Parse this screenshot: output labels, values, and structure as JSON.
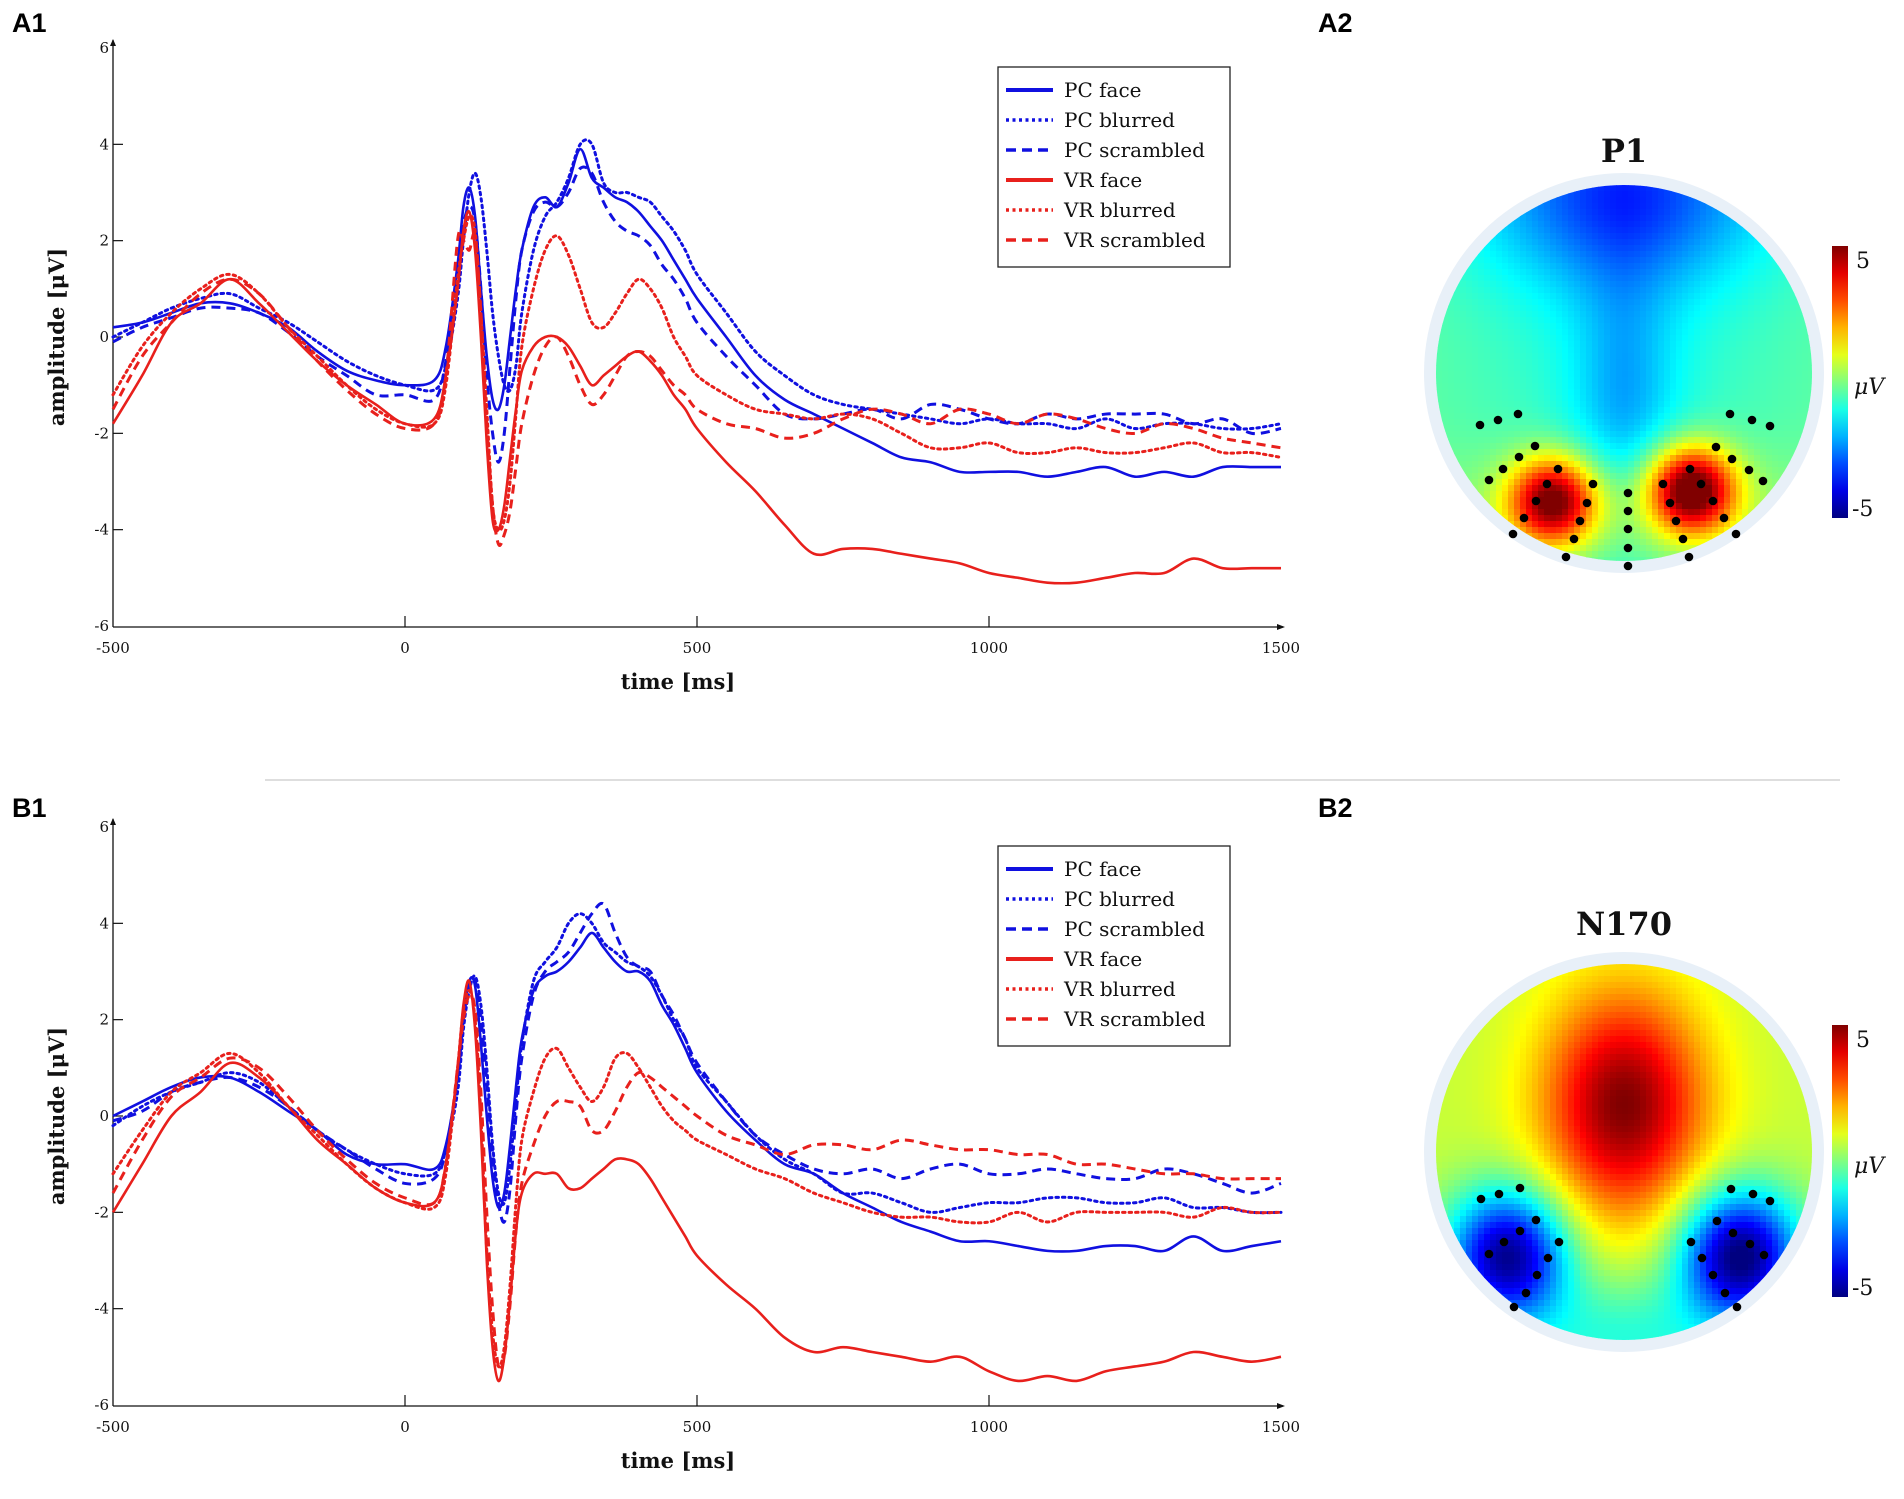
{
  "figure": {
    "panels": {
      "A1": "A1",
      "A2": "A2",
      "B1": "B1",
      "B2": "B2"
    }
  },
  "colors": {
    "pc": "#1010e0",
    "vr": "#e8201c",
    "axis": "#111111"
  },
  "chart_data": [
    {
      "id": "A1",
      "type": "line",
      "title": "",
      "xlabel": "time [ms]",
      "ylabel": "amplitude [μV]",
      "xlim": [
        -500,
        1500
      ],
      "ylim": [
        -6,
        6
      ],
      "xticks": [
        -500,
        0,
        500,
        1000,
        1500
      ],
      "yticks": [
        -6,
        -4,
        -2,
        0,
        2,
        4,
        6
      ],
      "grid": false,
      "legend_position": "top-right",
      "x": [
        -500,
        -450,
        -400,
        -350,
        -300,
        -250,
        -200,
        -150,
        -100,
        -50,
        0,
        50,
        70,
        90,
        100,
        110,
        120,
        130,
        140,
        150,
        160,
        170,
        180,
        190,
        200,
        220,
        240,
        260,
        280,
        300,
        320,
        340,
        360,
        380,
        400,
        420,
        440,
        460,
        480,
        500,
        550,
        600,
        650,
        700,
        750,
        800,
        850,
        900,
        950,
        1000,
        1050,
        1100,
        1150,
        1200,
        1250,
        1300,
        1350,
        1400,
        1450,
        1500
      ],
      "series": [
        {
          "name": "PC face",
          "group": "pc",
          "style": "solid",
          "values": [
            0.2,
            0.3,
            0.5,
            0.7,
            0.7,
            0.5,
            0.2,
            -0.3,
            -0.7,
            -0.9,
            -1.0,
            -0.9,
            -0.2,
            1.5,
            2.7,
            3.1,
            2.5,
            1.0,
            -0.4,
            -1.3,
            -1.5,
            -1.0,
            0.0,
            1.0,
            1.8,
            2.7,
            2.9,
            2.7,
            3.2,
            3.9,
            3.3,
            3.1,
            2.9,
            2.8,
            2.6,
            2.3,
            2.0,
            1.6,
            1.2,
            0.8,
            0.0,
            -0.8,
            -1.3,
            -1.6,
            -1.9,
            -2.2,
            -2.5,
            -2.6,
            -2.8,
            -2.8,
            -2.8,
            -2.9,
            -2.8,
            -2.7,
            -2.9,
            -2.8,
            -2.9,
            -2.7,
            -2.7,
            -2.7
          ]
        },
        {
          "name": "PC blurred",
          "group": "pc",
          "style": "dotted",
          "values": [
            0.0,
            0.3,
            0.6,
            0.8,
            0.9,
            0.6,
            0.3,
            -0.1,
            -0.5,
            -0.8,
            -1.0,
            -1.1,
            -0.6,
            0.8,
            2.0,
            3.0,
            3.4,
            2.9,
            1.8,
            0.5,
            -0.4,
            -1.0,
            -1.1,
            -0.6,
            0.5,
            1.8,
            2.5,
            2.8,
            3.3,
            4.0,
            4.0,
            3.2,
            3.0,
            3.0,
            2.9,
            2.8,
            2.5,
            2.2,
            1.8,
            1.3,
            0.5,
            -0.3,
            -0.8,
            -1.2,
            -1.4,
            -1.5,
            -1.6,
            -1.7,
            -1.8,
            -1.7,
            -1.8,
            -1.8,
            -1.9,
            -1.7,
            -1.9,
            -1.8,
            -1.8,
            -1.9,
            -1.9,
            -1.8
          ]
        },
        {
          "name": "PC scrambled",
          "group": "pc",
          "style": "dashed",
          "values": [
            -0.1,
            0.2,
            0.4,
            0.6,
            0.6,
            0.5,
            0.1,
            -0.4,
            -0.8,
            -1.2,
            -1.2,
            -1.3,
            -0.5,
            1.2,
            2.3,
            2.7,
            2.4,
            1.0,
            -0.8,
            -2.0,
            -2.6,
            -2.0,
            -0.6,
            0.8,
            1.8,
            2.6,
            2.8,
            2.7,
            3.0,
            3.5,
            3.4,
            2.8,
            2.4,
            2.2,
            2.1,
            1.9,
            1.5,
            1.2,
            0.8,
            0.3,
            -0.4,
            -1.0,
            -1.6,
            -1.7,
            -1.6,
            -1.5,
            -1.7,
            -1.4,
            -1.5,
            -1.7,
            -1.8,
            -1.6,
            -1.7,
            -1.6,
            -1.6,
            -1.6,
            -1.8,
            -1.7,
            -2.0,
            -1.9
          ]
        },
        {
          "name": "VR face",
          "group": "vr",
          "style": "solid",
          "values": [
            -1.8,
            -0.8,
            0.3,
            0.7,
            1.2,
            0.7,
            0.1,
            -0.5,
            -1.0,
            -1.4,
            -1.8,
            -1.7,
            -0.8,
            1.0,
            2.2,
            2.6,
            1.8,
            0.0,
            -2.2,
            -3.8,
            -4.0,
            -3.5,
            -2.5,
            -1.5,
            -0.7,
            -0.2,
            0.0,
            0.0,
            -0.2,
            -0.6,
            -1.0,
            -0.8,
            -0.6,
            -0.4,
            -0.3,
            -0.5,
            -0.8,
            -1.2,
            -1.5,
            -1.9,
            -2.6,
            -3.2,
            -3.9,
            -4.5,
            -4.4,
            -4.4,
            -4.5,
            -4.6,
            -4.7,
            -4.9,
            -5.0,
            -5.1,
            -5.1,
            -5.0,
            -4.9,
            -4.9,
            -4.6,
            -4.8,
            -4.8,
            -4.8
          ]
        },
        {
          "name": "VR blurred",
          "group": "vr",
          "style": "dotted",
          "values": [
            -1.2,
            -0.2,
            0.5,
            1.0,
            1.3,
            0.9,
            0.2,
            -0.4,
            -1.0,
            -1.5,
            -1.8,
            -1.8,
            -1.0,
            1.2,
            2.0,
            2.5,
            2.2,
            0.5,
            -1.5,
            -3.5,
            -4.0,
            -3.8,
            -3.0,
            -1.6,
            -0.2,
            1.0,
            1.8,
            2.1,
            1.7,
            1.0,
            0.3,
            0.2,
            0.5,
            0.9,
            1.2,
            1.0,
            0.6,
            0.0,
            -0.4,
            -0.8,
            -1.2,
            -1.5,
            -1.6,
            -1.7,
            -1.6,
            -1.7,
            -2.0,
            -2.3,
            -2.3,
            -2.2,
            -2.4,
            -2.4,
            -2.3,
            -2.4,
            -2.4,
            -2.3,
            -2.2,
            -2.4,
            -2.4,
            -2.5
          ]
        },
        {
          "name": "VR scrambled",
          "group": "vr",
          "style": "dashed",
          "values": [
            -1.5,
            -0.4,
            0.3,
            0.9,
            1.2,
            0.9,
            0.2,
            -0.5,
            -1.1,
            -1.6,
            -1.9,
            -1.8,
            -0.8,
            2.0,
            2.0,
            1.8,
            2.1,
            0.5,
            -1.8,
            -3.5,
            -4.3,
            -4.1,
            -3.6,
            -2.7,
            -1.8,
            -0.8,
            -0.2,
            0.0,
            -0.4,
            -1.0,
            -1.4,
            -1.2,
            -0.8,
            -0.4,
            -0.3,
            -0.4,
            -0.7,
            -1.0,
            -1.2,
            -1.5,
            -1.8,
            -1.9,
            -2.1,
            -2.0,
            -1.7,
            -1.5,
            -1.6,
            -1.8,
            -1.5,
            -1.6,
            -1.8,
            -1.6,
            -1.7,
            -1.9,
            -2.0,
            -1.8,
            -1.9,
            -2.1,
            -2.2,
            -2.3
          ]
        }
      ]
    },
    {
      "id": "B1",
      "type": "line",
      "title": "",
      "xlabel": "time [ms]",
      "ylabel": "amplitude [μV]",
      "xlim": [
        -500,
        1500
      ],
      "ylim": [
        -6,
        6
      ],
      "xticks": [
        -500,
        0,
        500,
        1000,
        1500
      ],
      "yticks": [
        -6,
        -4,
        -2,
        0,
        2,
        4,
        6
      ],
      "grid": false,
      "legend_position": "top-right",
      "x": [
        -500,
        -450,
        -400,
        -350,
        -300,
        -250,
        -200,
        -150,
        -100,
        -50,
        0,
        50,
        70,
        90,
        100,
        110,
        120,
        130,
        140,
        150,
        160,
        170,
        180,
        190,
        200,
        220,
        240,
        260,
        280,
        300,
        320,
        340,
        360,
        380,
        400,
        420,
        440,
        460,
        480,
        500,
        550,
        600,
        650,
        700,
        750,
        800,
        850,
        900,
        950,
        1000,
        1050,
        1100,
        1150,
        1200,
        1250,
        1300,
        1350,
        1400,
        1450,
        1500
      ],
      "series": [
        {
          "name": "PC face",
          "group": "pc",
          "style": "solid",
          "values": [
            0.0,
            0.3,
            0.6,
            0.8,
            0.8,
            0.5,
            0.1,
            -0.3,
            -0.8,
            -1.0,
            -1.0,
            -1.1,
            -0.6,
            0.8,
            2.0,
            2.8,
            2.7,
            1.5,
            0.0,
            -1.3,
            -1.9,
            -1.6,
            -0.6,
            0.6,
            1.6,
            2.6,
            2.9,
            3.0,
            3.2,
            3.5,
            3.8,
            3.5,
            3.2,
            3.0,
            3.0,
            2.8,
            2.3,
            1.9,
            1.4,
            0.9,
            0.1,
            -0.5,
            -1.0,
            -1.2,
            -1.6,
            -1.9,
            -2.2,
            -2.4,
            -2.6,
            -2.6,
            -2.7,
            -2.8,
            -2.8,
            -2.7,
            -2.7,
            -2.8,
            -2.5,
            -2.8,
            -2.7,
            -2.6
          ]
        },
        {
          "name": "PC blurred",
          "group": "pc",
          "style": "dotted",
          "values": [
            -0.2,
            0.2,
            0.5,
            0.7,
            0.9,
            0.7,
            0.2,
            -0.3,
            -0.7,
            -1.0,
            -1.2,
            -1.2,
            -0.7,
            0.5,
            1.8,
            2.6,
            2.9,
            2.3,
            1.0,
            -0.6,
            -1.6,
            -1.8,
            -1.0,
            0.3,
            1.5,
            2.8,
            3.2,
            3.5,
            4.0,
            4.2,
            4.0,
            3.6,
            3.4,
            3.2,
            3.1,
            2.9,
            2.5,
            2.0,
            1.6,
            1.0,
            0.3,
            -0.4,
            -0.9,
            -1.2,
            -1.6,
            -1.6,
            -1.8,
            -2.0,
            -1.9,
            -1.8,
            -1.8,
            -1.7,
            -1.7,
            -1.8,
            -1.8,
            -1.7,
            -1.9,
            -1.9,
            -2.0,
            -2.0
          ]
        },
        {
          "name": "PC scrambled",
          "group": "pc",
          "style": "dashed",
          "values": [
            -0.1,
            0.1,
            0.5,
            0.7,
            0.8,
            0.6,
            0.2,
            -0.3,
            -0.7,
            -1.1,
            -1.4,
            -1.3,
            -0.7,
            0.8,
            2.0,
            2.7,
            2.8,
            2.0,
            0.7,
            -0.8,
            -1.8,
            -2.2,
            -1.5,
            0.0,
            1.2,
            2.5,
            3.0,
            3.2,
            3.4,
            3.8,
            4.2,
            4.4,
            3.8,
            3.3,
            3.1,
            3.0,
            2.5,
            2.1,
            1.6,
            1.1,
            0.3,
            -0.4,
            -0.8,
            -1.1,
            -1.2,
            -1.1,
            -1.3,
            -1.1,
            -1.0,
            -1.2,
            -1.2,
            -1.1,
            -1.2,
            -1.3,
            -1.3,
            -1.1,
            -1.2,
            -1.4,
            -1.6,
            -1.4
          ]
        },
        {
          "name": "VR face",
          "group": "vr",
          "style": "solid",
          "values": [
            -2.0,
            -1.0,
            0.0,
            0.5,
            1.1,
            0.8,
            0.2,
            -0.5,
            -1.0,
            -1.5,
            -1.8,
            -1.8,
            -1.0,
            1.0,
            2.3,
            2.8,
            1.8,
            -0.3,
            -3.0,
            -4.8,
            -5.5,
            -5.0,
            -3.8,
            -2.4,
            -1.6,
            -1.2,
            -1.2,
            -1.2,
            -1.5,
            -1.5,
            -1.3,
            -1.1,
            -0.9,
            -0.9,
            -1.0,
            -1.3,
            -1.7,
            -2.1,
            -2.5,
            -2.9,
            -3.5,
            -4.0,
            -4.6,
            -4.9,
            -4.8,
            -4.9,
            -5.0,
            -5.1,
            -5.0,
            -5.3,
            -5.5,
            -5.4,
            -5.5,
            -5.3,
            -5.2,
            -5.1,
            -4.9,
            -5.0,
            -5.1,
            -5.0
          ]
        },
        {
          "name": "VR blurred",
          "group": "vr",
          "style": "dotted",
          "values": [
            -1.2,
            -0.3,
            0.5,
            0.9,
            1.3,
            0.9,
            0.2,
            -0.4,
            -1.0,
            -1.5,
            -1.8,
            -1.9,
            -1.2,
            1.0,
            2.2,
            2.6,
            2.0,
            0.0,
            -2.8,
            -4.5,
            -5.2,
            -4.8,
            -3.5,
            -1.8,
            -0.5,
            0.5,
            1.2,
            1.4,
            1.0,
            0.6,
            0.3,
            0.6,
            1.2,
            1.3,
            1.0,
            0.6,
            0.2,
            -0.1,
            -0.3,
            -0.5,
            -0.8,
            -1.1,
            -1.3,
            -1.6,
            -1.8,
            -2.0,
            -2.1,
            -2.1,
            -2.2,
            -2.2,
            -2.0,
            -2.2,
            -2.0,
            -2.0,
            -2.0,
            -2.0,
            -2.1,
            -1.9,
            -2.0,
            -2.0
          ]
        },
        {
          "name": "VR scrambled",
          "group": "vr",
          "style": "dashed",
          "values": [
            -1.6,
            -0.5,
            0.4,
            0.8,
            1.2,
            1.0,
            0.4,
            -0.3,
            -0.9,
            -1.4,
            -1.7,
            -1.8,
            -1.0,
            1.0,
            2.0,
            2.5,
            2.2,
            0.5,
            -2.0,
            -4.0,
            -5.2,
            -5.0,
            -3.9,
            -2.4,
            -1.4,
            -0.6,
            0.0,
            0.3,
            0.3,
            0.2,
            -0.3,
            -0.3,
            0.1,
            0.6,
            0.9,
            0.8,
            0.6,
            0.4,
            0.2,
            0.0,
            -0.4,
            -0.6,
            -0.8,
            -0.6,
            -0.6,
            -0.7,
            -0.5,
            -0.6,
            -0.7,
            -0.7,
            -0.8,
            -0.8,
            -1.0,
            -1.0,
            -1.1,
            -1.2,
            -1.2,
            -1.3,
            -1.3,
            -1.3
          ]
        }
      ]
    },
    {
      "id": "A2",
      "type": "heatmap",
      "subtype": "scalp-topography",
      "title": "P1",
      "colorbar": {
        "min": -5,
        "max": 5,
        "ticks": [
          "5",
          "-5"
        ],
        "unit": "μV",
        "colormap": "jet"
      },
      "pattern": "bilateral occipital positivity (red), frontal/central negativity (blue-cyan)"
    },
    {
      "id": "B2",
      "type": "heatmap",
      "subtype": "scalp-topography",
      "title": "N170",
      "colorbar": {
        "min": -5,
        "max": 5,
        "ticks": [
          "5",
          "-5"
        ],
        "unit": "μV",
        "colormap": "jet"
      },
      "pattern": "bilateral occipito-temporal negativity (blue), fronto-central positivity (orange)"
    }
  ]
}
